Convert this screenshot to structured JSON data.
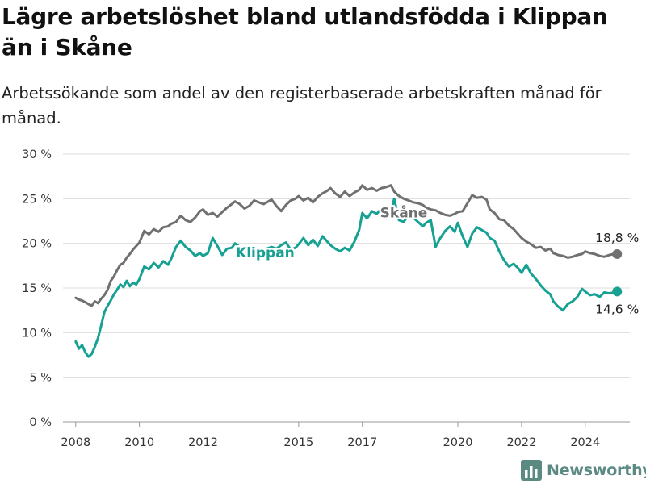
{
  "header": {
    "title": "Lägre arbetslöshet bland utlandsfödda i Klippan än i Skåne",
    "subtitle": "Arbetssökande som andel av den registerbaserade arbetskraften månad för månad."
  },
  "brand": {
    "name": "Newsworthy",
    "logo_icon": "bar-chart-icon",
    "color": "#5b8a83"
  },
  "chart_data": {
    "type": "line",
    "title": "Lägre arbetslöshet bland utlandsfödda i Klippan än i Skåne",
    "subtitle": "Arbetssökande som andel av den registerbaserade arbetskraften månad för månad.",
    "xlabel": "",
    "ylabel": "",
    "ylim": [
      0,
      30
    ],
    "xlim": [
      2007.6,
      2025.4
    ],
    "y_ticks": [
      {
        "value": 0,
        "label": "0 %"
      },
      {
        "value": 5,
        "label": "5 %"
      },
      {
        "value": 10,
        "label": "10 %"
      },
      {
        "value": 15,
        "label": "15 %"
      },
      {
        "value": 20,
        "label": "20 %"
      },
      {
        "value": 25,
        "label": "25 %"
      },
      {
        "value": 30,
        "label": "30 %"
      }
    ],
    "x_ticks": [
      {
        "value": 2008,
        "label": "2008"
      },
      {
        "value": 2010,
        "label": "2010"
      },
      {
        "value": 2012,
        "label": "2012"
      },
      {
        "value": 2015,
        "label": "2015"
      },
      {
        "value": 2017,
        "label": "2017"
      },
      {
        "value": 2020,
        "label": "2020"
      },
      {
        "value": 2022,
        "label": "2022"
      },
      {
        "value": 2024,
        "label": "2024"
      }
    ],
    "grid": true,
    "legend": "none",
    "series": [
      {
        "name": "Skåne",
        "color": "#707070",
        "end_label": "18,8 %",
        "end_value": 18.8,
        "x": [
          2008.0,
          2008.1,
          2008.2,
          2008.3,
          2008.4,
          2008.5,
          2008.6,
          2008.7,
          2008.8,
          2008.9,
          2009.0,
          2009.1,
          2009.2,
          2009.3,
          2009.4,
          2009.5,
          2009.6,
          2009.7,
          2009.8,
          2009.9,
          2010.0,
          2010.15,
          2010.3,
          2010.45,
          2010.6,
          2010.75,
          2010.9,
          2011.0,
          2011.15,
          2011.3,
          2011.45,
          2011.6,
          2011.75,
          2011.9,
          2012.0,
          2012.15,
          2012.3,
          2012.45,
          2012.6,
          2012.75,
          2012.9,
          2013.0,
          2013.15,
          2013.3,
          2013.45,
          2013.6,
          2013.75,
          2013.9,
          2014.0,
          2014.15,
          2014.3,
          2014.45,
          2014.6,
          2014.75,
          2014.9,
          2015.0,
          2015.15,
          2015.3,
          2015.45,
          2015.6,
          2015.75,
          2015.9,
          2016.0,
          2016.15,
          2016.3,
          2016.45,
          2016.6,
          2016.75,
          2016.9,
          2017.0,
          2017.15,
          2017.3,
          2017.45,
          2017.6,
          2017.75,
          2017.9,
          2018.0,
          2018.15,
          2018.3,
          2018.45,
          2018.6,
          2018.75,
          2018.9,
          2019.0,
          2019.15,
          2019.3,
          2019.45,
          2019.6,
          2019.75,
          2019.9,
          2020.0,
          2020.15,
          2020.3,
          2020.45,
          2020.6,
          2020.75,
          2020.9,
          2021.0,
          2021.15,
          2021.3,
          2021.45,
          2021.6,
          2021.75,
          2021.9,
          2022.0,
          2022.15,
          2022.3,
          2022.45,
          2022.6,
          2022.75,
          2022.9,
          2023.0,
          2023.15,
          2023.3,
          2023.45,
          2023.6,
          2023.75,
          2023.9,
          2024.0,
          2024.15,
          2024.3,
          2024.45,
          2024.6,
          2024.75,
          2024.9,
          2025.0
        ],
        "y": [
          13.9,
          13.7,
          13.6,
          13.4,
          13.2,
          13.0,
          13.5,
          13.3,
          13.8,
          14.2,
          14.8,
          15.8,
          16.3,
          17.0,
          17.6,
          17.8,
          18.4,
          18.8,
          19.3,
          19.7,
          20.1,
          21.4,
          21.0,
          21.6,
          21.3,
          21.8,
          21.9,
          22.2,
          22.4,
          23.1,
          22.6,
          22.4,
          22.9,
          23.6,
          23.8,
          23.2,
          23.4,
          23.0,
          23.5,
          24.0,
          24.4,
          24.7,
          24.4,
          23.9,
          24.2,
          24.8,
          24.6,
          24.4,
          24.6,
          24.9,
          24.2,
          23.6,
          24.3,
          24.8,
          25.0,
          25.3,
          24.8,
          25.1,
          24.6,
          25.2,
          25.6,
          25.9,
          26.2,
          25.6,
          25.2,
          25.8,
          25.3,
          25.7,
          26.0,
          26.5,
          26.0,
          26.2,
          25.9,
          26.2,
          26.3,
          26.5,
          25.8,
          25.3,
          25.0,
          24.8,
          24.6,
          24.5,
          24.3,
          24.0,
          23.8,
          23.7,
          23.4,
          23.2,
          23.1,
          23.3,
          23.5,
          23.6,
          24.5,
          25.4,
          25.1,
          25.2,
          24.9,
          23.8,
          23.4,
          22.7,
          22.6,
          22.0,
          21.6,
          21.0,
          20.6,
          20.2,
          19.9,
          19.5,
          19.6,
          19.2,
          19.4,
          18.9,
          18.7,
          18.6,
          18.4,
          18.5,
          18.7,
          18.8,
          19.1,
          18.9,
          18.8,
          18.6,
          18.5,
          18.7,
          18.8,
          18.8
        ]
      },
      {
        "name": "Klippan",
        "color": "#16a193",
        "end_label": "14,6 %",
        "end_value": 14.6,
        "x": [
          2008.0,
          2008.1,
          2008.2,
          2008.3,
          2008.4,
          2008.5,
          2008.6,
          2008.7,
          2008.8,
          2008.9,
          2009.0,
          2009.1,
          2009.2,
          2009.3,
          2009.4,
          2009.5,
          2009.6,
          2009.7,
          2009.8,
          2009.9,
          2010.0,
          2010.15,
          2010.3,
          2010.45,
          2010.6,
          2010.75,
          2010.9,
          2011.0,
          2011.15,
          2011.3,
          2011.45,
          2011.6,
          2011.75,
          2011.9,
          2012.0,
          2012.15,
          2012.3,
          2012.45,
          2012.6,
          2012.75,
          2012.9,
          2013.0,
          2013.15,
          2013.3,
          2013.45,
          2013.6,
          2013.75,
          2013.9,
          2014.0,
          2014.15,
          2014.3,
          2014.45,
          2014.6,
          2014.75,
          2014.9,
          2015.0,
          2015.15,
          2015.3,
          2015.45,
          2015.6,
          2015.75,
          2015.9,
          2016.0,
          2016.15,
          2016.3,
          2016.45,
          2016.6,
          2016.75,
          2016.9,
          2017.0,
          2017.15,
          2017.3,
          2017.45,
          2017.6,
          2017.75,
          2017.9,
          2018.0,
          2018.15,
          2018.3,
          2018.45,
          2018.6,
          2018.75,
          2018.9,
          2019.0,
          2019.15,
          2019.3,
          2019.45,
          2019.6,
          2019.75,
          2019.9,
          2020.0,
          2020.15,
          2020.3,
          2020.45,
          2020.6,
          2020.75,
          2020.9,
          2021.0,
          2021.15,
          2021.3,
          2021.45,
          2021.6,
          2021.75,
          2021.9,
          2022.0,
          2022.15,
          2022.3,
          2022.45,
          2022.6,
          2022.75,
          2022.9,
          2023.0,
          2023.15,
          2023.3,
          2023.45,
          2023.6,
          2023.75,
          2023.9,
          2024.0,
          2024.15,
          2024.3,
          2024.45,
          2024.6,
          2024.75,
          2024.9,
          2025.0
        ],
        "y": [
          9.0,
          8.2,
          8.6,
          7.8,
          7.3,
          7.6,
          8.4,
          9.4,
          10.8,
          12.3,
          13.0,
          13.6,
          14.3,
          14.8,
          15.4,
          15.1,
          15.8,
          15.2,
          15.6,
          15.4,
          16.0,
          17.4,
          17.1,
          17.8,
          17.3,
          18.0,
          17.6,
          18.3,
          19.6,
          20.3,
          19.6,
          19.2,
          18.6,
          18.9,
          18.6,
          18.9,
          20.6,
          19.7,
          18.7,
          19.4,
          19.5,
          20.0,
          19.6,
          19.2,
          18.8,
          19.0,
          19.3,
          19.1,
          19.4,
          19.6,
          19.4,
          19.8,
          20.1,
          19.3,
          19.5,
          19.9,
          20.6,
          19.8,
          20.4,
          19.7,
          20.8,
          20.2,
          19.8,
          19.4,
          19.1,
          19.5,
          19.2,
          20.2,
          21.5,
          23.4,
          22.8,
          23.6,
          23.3,
          23.9,
          23.7,
          23.5,
          25.0,
          22.6,
          22.4,
          23.2,
          22.9,
          22.4,
          21.9,
          22.3,
          22.6,
          19.6,
          20.6,
          21.4,
          21.9,
          21.3,
          22.3,
          20.8,
          19.6,
          21.1,
          21.8,
          21.5,
          21.2,
          20.6,
          20.3,
          19.1,
          18.1,
          17.4,
          17.7,
          17.2,
          16.7,
          17.6,
          16.6,
          16.0,
          15.3,
          14.7,
          14.3,
          13.5,
          12.9,
          12.5,
          13.2,
          13.5,
          14.0,
          14.9,
          14.6,
          14.2,
          14.3,
          14.0,
          14.5,
          14.4,
          14.5,
          14.6
        ]
      }
    ],
    "series_labels": [
      {
        "series": "Skåne",
        "text": "Skåne",
        "x": 2018.3,
        "y": 23.45
      },
      {
        "series": "Klippan",
        "text": "Klippan",
        "x": 2013.95,
        "y": 18.97
      }
    ]
  }
}
